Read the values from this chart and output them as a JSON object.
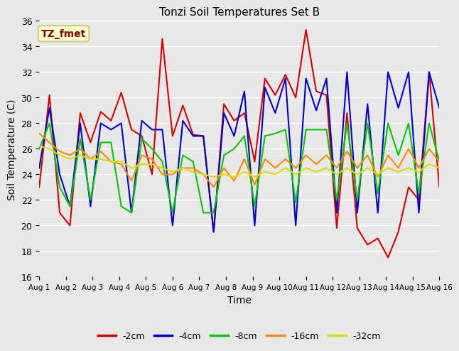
{
  "title": "Tonzi Soil Temperatures Set B",
  "xlabel": "Time",
  "ylabel": "Soil Temperature (C)",
  "ylim": [
    16,
    36
  ],
  "yticks": [
    16,
    18,
    20,
    22,
    24,
    26,
    28,
    30,
    32,
    34,
    36
  ],
  "plot_bg": "#e8e8e8",
  "fig_bg": "#e8e8e8",
  "annotation_text": "TZ_fmet",
  "annotation_color": "#8b0000",
  "annotation_bg": "#ffffcc",
  "annotation_edge": "#cccc88",
  "series": {
    "-2cm": {
      "color": "#dd0000",
      "values": [
        23.0,
        30.2,
        21.0,
        20.0,
        28.8,
        26.5,
        28.9,
        28.2,
        30.4,
        27.5,
        27.0,
        24.0,
        34.6,
        27.0,
        29.4,
        27.1,
        27.0,
        19.5,
        29.5,
        28.2,
        28.8,
        25.0,
        31.5,
        30.2,
        31.8,
        30.0,
        35.3,
        30.5,
        30.2,
        19.8,
        28.8,
        19.8,
        18.5,
        19.0,
        17.5,
        19.5,
        23.0,
        22.0,
        32.0,
        23.0
      ]
    },
    "-4cm": {
      "color": "#0000dd",
      "values": [
        24.5,
        29.2,
        24.0,
        21.5,
        28.0,
        21.5,
        28.0,
        27.5,
        28.0,
        21.0,
        28.2,
        27.5,
        27.5,
        20.0,
        28.2,
        27.0,
        27.0,
        19.5,
        28.8,
        27.0,
        30.5,
        20.0,
        30.8,
        28.8,
        31.5,
        20.0,
        31.5,
        29.0,
        31.5,
        21.0,
        32.0,
        21.0,
        29.5,
        21.0,
        32.0,
        29.2,
        32.0,
        21.0,
        32.0,
        29.2
      ]
    },
    "-8cm": {
      "color": "#00cc00",
      "values": [
        26.0,
        28.0,
        23.0,
        21.5,
        26.8,
        22.0,
        26.5,
        26.5,
        21.5,
        21.0,
        26.8,
        26.0,
        25.0,
        21.0,
        25.5,
        25.0,
        21.0,
        21.0,
        25.5,
        26.0,
        27.0,
        21.5,
        27.0,
        27.2,
        27.5,
        21.8,
        27.5,
        27.5,
        27.5,
        22.0,
        28.0,
        22.0,
        28.0,
        22.5,
        28.0,
        25.5,
        28.0,
        22.5,
        28.0,
        25.0
      ]
    },
    "-16cm": {
      "color": "#ff8800",
      "values": [
        27.2,
        26.5,
        25.8,
        25.5,
        26.0,
        25.2,
        25.8,
        25.0,
        24.8,
        23.5,
        25.5,
        25.2,
        24.0,
        24.0,
        24.5,
        24.5,
        24.0,
        23.0,
        24.5,
        23.5,
        25.2,
        23.2,
        25.2,
        24.5,
        25.2,
        24.5,
        25.5,
        24.8,
        25.5,
        24.5,
        25.8,
        24.5,
        25.5,
        23.8,
        25.5,
        24.5,
        26.0,
        24.5,
        26.0,
        25.0
      ]
    },
    "-32cm": {
      "color": "#dddd00",
      "values": [
        26.2,
        26.0,
        25.5,
        25.2,
        25.5,
        25.2,
        25.2,
        25.0,
        25.0,
        24.5,
        24.8,
        24.8,
        24.5,
        24.2,
        24.5,
        24.2,
        24.0,
        23.8,
        24.0,
        23.8,
        24.2,
        23.8,
        24.2,
        24.0,
        24.5,
        24.0,
        24.5,
        24.2,
        24.5,
        24.0,
        24.5,
        24.0,
        24.5,
        24.0,
        24.5,
        24.2,
        24.5,
        24.2,
        24.8,
        24.5
      ]
    }
  },
  "xtick_labels": [
    "Aug 1",
    "Aug 2",
    "Aug 3",
    "Aug 4",
    "Aug 5",
    "Aug 6",
    "Aug 7",
    "Aug 8",
    "Aug 9",
    "Aug 10",
    "Aug 11",
    "Aug 12",
    "Aug 13",
    "Aug 14",
    "Aug 15",
    "Aug 16"
  ],
  "legend_labels": [
    "-2cm",
    "-4cm",
    "-8cm",
    "-16cm",
    "-32cm"
  ],
  "legend_colors": [
    "#dd0000",
    "#0000dd",
    "#00cc00",
    "#ff8800",
    "#dddd00"
  ]
}
